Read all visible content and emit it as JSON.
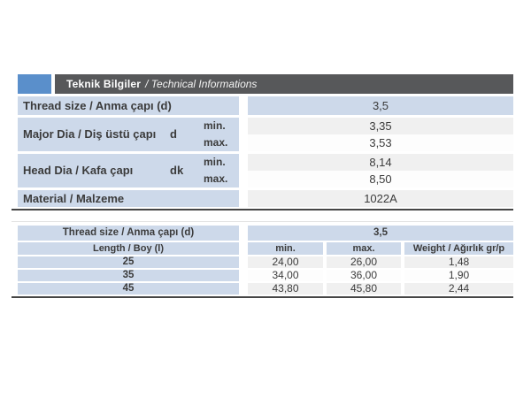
{
  "header": {
    "title_tr": "Teknik Bilgiler",
    "title_en": "/ Technical Informations"
  },
  "colors": {
    "accent_blue": "#5a8fcb",
    "title_bar_gray": "#57585a",
    "cell_blue": "#cdd9ea",
    "cell_gray": "#f0f0f0",
    "cell_white": "#fdfdfd",
    "rule_dark": "#454545",
    "text": "#3b3b3b"
  },
  "spec_table": {
    "min_label": "min.",
    "max_label": "max.",
    "thread": {
      "label": "Thread size / Anma çapı (d)",
      "value": "3,5"
    },
    "major": {
      "label": "Major Dia / Diş üstü çapı",
      "symbol": "d",
      "min": "3,35",
      "max": "3,53"
    },
    "head": {
      "label": "Head Dia / Kafa çapı",
      "symbol": "dk",
      "min": "8,14",
      "max": "8,50"
    },
    "material": {
      "label": "Material / Malzeme",
      "value": "1022A"
    }
  },
  "size_table": {
    "thread_label": "Thread size / Anma çapı (d)",
    "thread_value": "3,5",
    "columns": [
      "Length / Boy (l)",
      "min.",
      "max.",
      "Weight / Ağırlık gr/p"
    ],
    "rows": [
      [
        "25",
        "24,00",
        "26,00",
        "1,48"
      ],
      [
        "35",
        "34,00",
        "36,00",
        "1,90"
      ],
      [
        "45",
        "43,80",
        "45,80",
        "2,44"
      ]
    ]
  }
}
